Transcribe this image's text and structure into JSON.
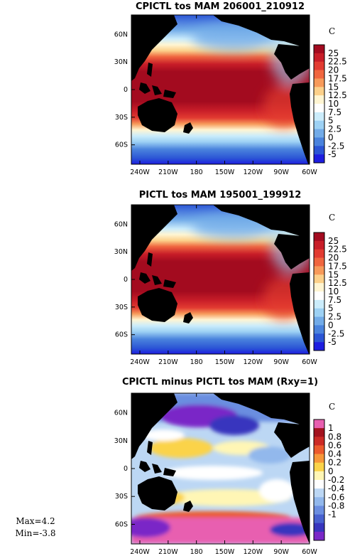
{
  "chart_data": [
    {
      "type": "heatmap",
      "title": "CPICTL tos MAM 206001_210912",
      "units": "C",
      "x_tick_labels": [
        "240W",
        "210W",
        "180",
        "150W",
        "120W",
        "90W",
        "60W"
      ],
      "y_tick_labels": [
        "60N",
        "30N",
        "0",
        "30S",
        "60S"
      ],
      "xlim": [
        100,
        300
      ],
      "ylim": [
        -80,
        80
      ],
      "colorbar_levels": [
        "25",
        "22.5",
        "20",
        "17.5",
        "15",
        "12.5",
        "10",
        "7.5",
        "5",
        "2.5",
        "0",
        "-2.5",
        "-5"
      ],
      "colorbar_colors": [
        "#a30b1f",
        "#c81d28",
        "#e23b31",
        "#f0663f",
        "#f79a5a",
        "#fcd08a",
        "#fff5d2",
        "#ffffff",
        "#cbecfb",
        "#9dd1f4",
        "#72abe8",
        "#4a83dd",
        "#2b55d5",
        "#1d1de0"
      ]
    },
    {
      "type": "heatmap",
      "title": "PICTL tos MAM 195001_199912",
      "units": "C",
      "x_tick_labels": [
        "240W",
        "210W",
        "180",
        "150W",
        "120W",
        "90W",
        "60W"
      ],
      "y_tick_labels": [
        "60N",
        "30N",
        "0",
        "30S",
        "60S"
      ],
      "xlim": [
        100,
        300
      ],
      "ylim": [
        -80,
        80
      ],
      "colorbar_levels": [
        "25",
        "22.5",
        "20",
        "17.5",
        "15",
        "12.5",
        "10",
        "7.5",
        "5",
        "2.5",
        "0",
        "-2.5",
        "-5"
      ],
      "colorbar_colors": [
        "#a30b1f",
        "#c81d28",
        "#e23b31",
        "#f0663f",
        "#f79a5a",
        "#fcd08a",
        "#fff5d2",
        "#ffffff",
        "#cbecfb",
        "#9dd1f4",
        "#72abe8",
        "#4a83dd",
        "#2b55d5",
        "#1d1de0"
      ]
    },
    {
      "type": "heatmap",
      "title": "CPICTL minus PICTL tos MAM (Rxy=1)",
      "units": "C",
      "x_tick_labels": [
        "240W",
        "210W",
        "180",
        "150W",
        "120W",
        "90W",
        "60W"
      ],
      "y_tick_labels": [
        "60N",
        "30N",
        "0",
        "30S",
        "60S"
      ],
      "xlim": [
        100,
        300
      ],
      "ylim": [
        -80,
        80
      ],
      "colorbar_levels": [
        "1",
        "0.8",
        "0.6",
        "0.4",
        "0.2",
        "0",
        "-0.2",
        "-0.4",
        "-0.6",
        "-0.8",
        "-1"
      ],
      "colorbar_colors": [
        "#e85fb0",
        "#a3121e",
        "#cc2a25",
        "#ec5a2c",
        "#f79739",
        "#fbd349",
        "#fff6b5",
        "#ffffff",
        "#bcd7f4",
        "#92b8ec",
        "#6b8ee0",
        "#4861cf",
        "#3735be",
        "#7a27c7"
      ],
      "stats": {
        "max": "Max=4.2",
        "min": "Min=-3.8"
      }
    }
  ],
  "colors": {
    "land": "#000000",
    "frame": "#000000"
  }
}
